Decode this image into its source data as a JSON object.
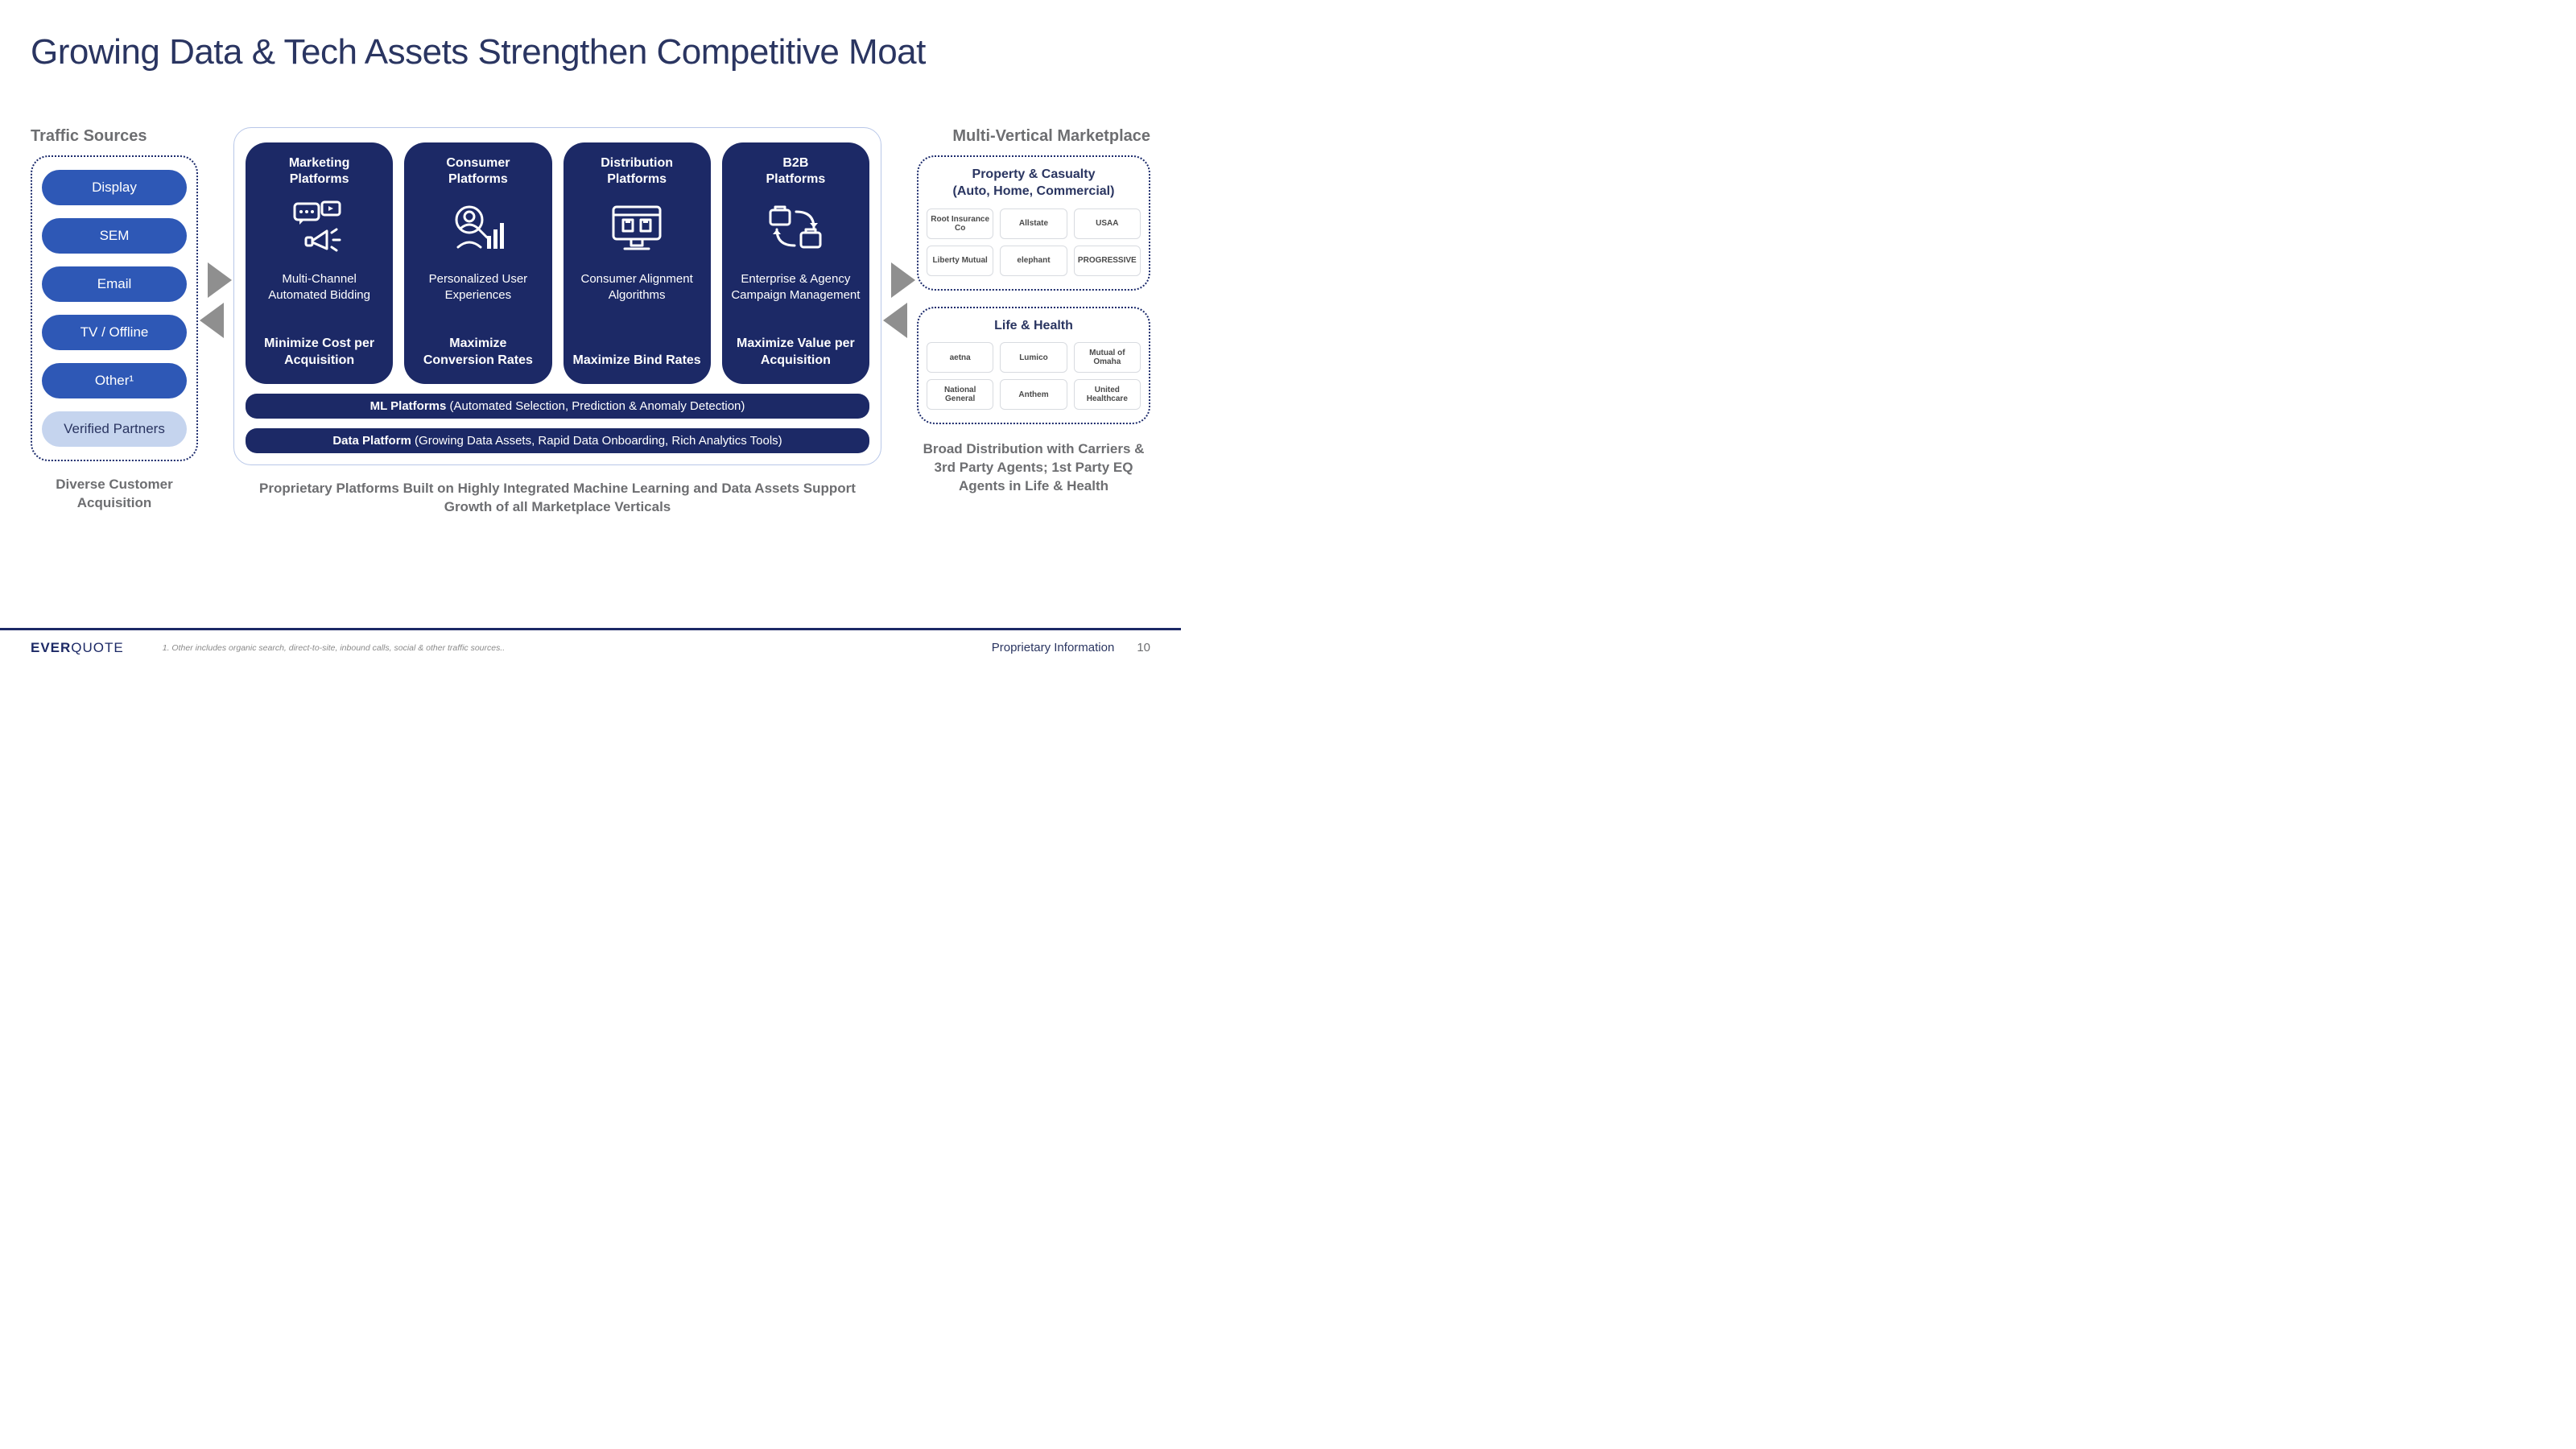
{
  "title": "Growing Data & Tech Assets Strengthen Competitive Moat",
  "colors": {
    "navy": "#1c2966",
    "blue_pill": "#2e58b6",
    "light_pill": "#c5d4ee",
    "heading_gray": "#6d6e71",
    "title_navy": "#2a3561",
    "arrow_gray": "#8f8f8f",
    "center_border": "#b8c7e8",
    "logo_border": "#d8dbe0"
  },
  "left": {
    "heading": "Traffic Sources",
    "pills": [
      {
        "label": "Display",
        "style": "blue"
      },
      {
        "label": "SEM",
        "style": "blue"
      },
      {
        "label": "Email",
        "style": "blue"
      },
      {
        "label": "TV / Offline",
        "style": "blue"
      },
      {
        "label": "Other¹",
        "style": "blue"
      },
      {
        "label": "Verified Partners",
        "style": "light"
      }
    ],
    "caption": "Diverse Customer Acquisition"
  },
  "center": {
    "cards": [
      {
        "title": "Marketing Platforms",
        "sub": "Multi-Channel Automated Bidding",
        "result": "Minimize Cost per Acquisition",
        "icon": "megaphone-icon"
      },
      {
        "title": "Consumer Platforms",
        "sub": "Personalized User Experiences",
        "result": "Maximize Conversion Rates",
        "icon": "user-chart-icon"
      },
      {
        "title": "Distribution Platforms",
        "sub": "Consumer Alignment Algorithms",
        "result": "Maximize Bind Rates",
        "icon": "monitor-icon"
      },
      {
        "title": "B2B Platforms",
        "sub": "Enterprise & Agency Campaign Management",
        "result": "Maximize Value per Acquisition",
        "icon": "briefcase-cycle-icon"
      }
    ],
    "bars": [
      {
        "bold": "ML Platforms",
        "rest": " (Automated Selection, Prediction & Anomaly Detection)"
      },
      {
        "bold": "Data Platform",
        "rest": " (Growing Data Assets, Rapid Data Onboarding, Rich Analytics Tools)"
      }
    ],
    "caption": "Proprietary Platforms Built on Highly Integrated Machine Learning and Data Assets Support Growth of all Marketplace Verticals"
  },
  "right": {
    "heading": "Multi-Vertical Marketplace",
    "sections": [
      {
        "title": "Property & Casualty (Auto, Home, Commercial)",
        "logos": [
          "Root Insurance Co",
          "Allstate",
          "USAA",
          "Liberty Mutual",
          "elephant",
          "PROGRESSIVE"
        ]
      },
      {
        "title": "Life & Health",
        "logos": [
          "aetna",
          "Lumico",
          "Mutual of Omaha",
          "National General",
          "Anthem",
          "United Healthcare"
        ]
      }
    ],
    "caption": "Broad Distribution with Carriers & 3rd Party Agents; 1st Party EQ Agents in Life & Health"
  },
  "footer": {
    "brand_left": "EVER",
    "brand_right": "QUOTE",
    "footnote": "1.  Other includes organic search, direct-to-site, inbound calls, social  & other traffic sources..",
    "proprietary": "Proprietary Information",
    "page": "10"
  }
}
